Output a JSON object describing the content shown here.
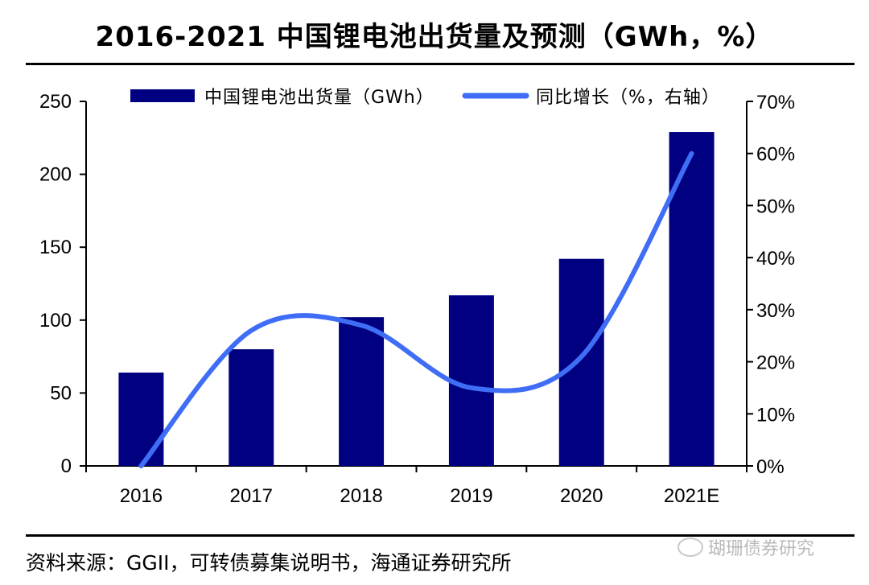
{
  "title": "2016-2021 中国锂电池出货量及预测（GWh，%）",
  "source": "资料来源：GGII，可转债募集说明书，海通证券研究所",
  "watermark": "瑚珊债券研究",
  "colors": {
    "bar": "#000080",
    "line": "#3f6df5"
  },
  "chart_data": {
    "type": "bar+line",
    "categories": [
      "2016",
      "2017",
      "2018",
      "2019",
      "2020",
      "2021E"
    ],
    "series": [
      {
        "name": "中国锂电池出货量（GWh）",
        "type": "bar",
        "axis": "left",
        "values": [
          64,
          80,
          102,
          117,
          142,
          229
        ]
      },
      {
        "name": "同比增长（%，右轴）",
        "type": "line",
        "axis": "right",
        "smooth": true,
        "values": [
          0,
          26,
          27,
          15,
          21,
          60
        ]
      }
    ],
    "y_left": {
      "min": 0,
      "max": 250,
      "ticks": [
        "0",
        "50",
        "100",
        "150",
        "200",
        "250"
      ]
    },
    "y_right": {
      "min": 0,
      "max": 70,
      "ticks": [
        "0%",
        "10%",
        "20%",
        "30%",
        "40%",
        "50%",
        "60%",
        "70%"
      ]
    },
    "legend_position": "top",
    "grid": false
  }
}
